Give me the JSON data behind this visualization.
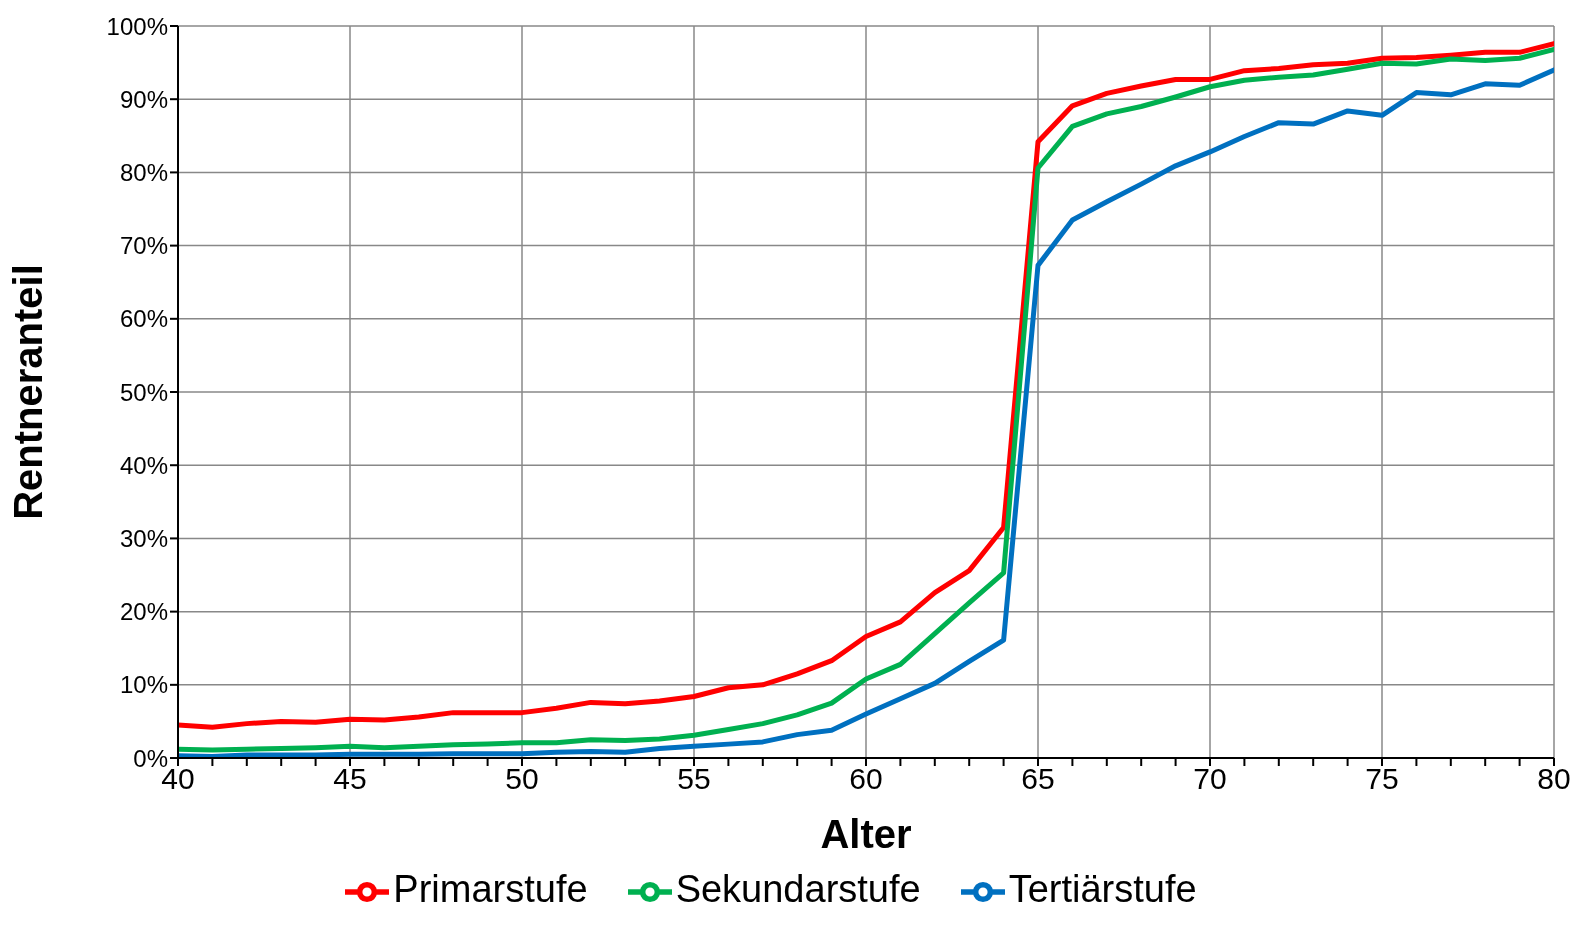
{
  "chart_data": {
    "type": "line",
    "xlabel": "Alter",
    "ylabel": "Rentneranteil",
    "x": [
      40,
      41,
      42,
      43,
      44,
      45,
      46,
      47,
      48,
      49,
      50,
      51,
      52,
      53,
      54,
      55,
      56,
      57,
      58,
      59,
      60,
      61,
      62,
      63,
      64,
      65,
      66,
      67,
      68,
      69,
      70,
      71,
      72,
      73,
      74,
      75,
      76,
      77,
      78,
      79,
      80
    ],
    "series": [
      {
        "name": "Primarstufe",
        "color": "#ff0000",
        "values": [
          4.5,
          4.2,
          4.7,
          5.0,
          4.9,
          5.3,
          5.2,
          5.6,
          6.2,
          6.2,
          6.2,
          6.8,
          7.6,
          7.4,
          7.8,
          8.4,
          9.6,
          10.0,
          11.5,
          13.3,
          16.6,
          18.6,
          22.6,
          25.6,
          31.5,
          84.2,
          89.1,
          90.8,
          91.8,
          92.7,
          92.7,
          93.9,
          94.2,
          94.7,
          94.9,
          95.6,
          95.7,
          96.0,
          96.4,
          96.4,
          97.6
        ]
      },
      {
        "name": "Sekundarstufe",
        "color": "#00b050",
        "values": [
          1.2,
          1.1,
          1.2,
          1.3,
          1.4,
          1.6,
          1.4,
          1.6,
          1.8,
          1.9,
          2.1,
          2.1,
          2.5,
          2.4,
          2.6,
          3.1,
          3.9,
          4.7,
          5.9,
          7.5,
          10.8,
          12.8,
          17.0,
          21.2,
          25.3,
          80.6,
          86.3,
          88.0,
          89.0,
          90.3,
          91.7,
          92.6,
          93.0,
          93.3,
          94.1,
          94.9,
          94.8,
          95.5,
          95.3,
          95.6,
          96.8
        ]
      },
      {
        "name": "Tertiärstufe",
        "color": "#0070c0",
        "values": [
          0.3,
          0.2,
          0.4,
          0.4,
          0.4,
          0.5,
          0.5,
          0.5,
          0.6,
          0.6,
          0.6,
          0.8,
          0.9,
          0.8,
          1.3,
          1.6,
          1.9,
          2.2,
          3.2,
          3.8,
          6.0,
          8.1,
          10.2,
          13.2,
          16.1,
          67.3,
          73.5,
          76.0,
          78.4,
          80.9,
          82.8,
          84.9,
          86.8,
          86.6,
          88.4,
          87.8,
          90.9,
          90.6,
          92.1,
          91.9,
          94.0
        ]
      }
    ],
    "xlim": [
      40,
      80
    ],
    "xticks": [
      40,
      {
        "value": 41,
        "label": null
      },
      {
        "value": 42,
        "label": null
      },
      {
        "value": 43,
        "label": null
      },
      {
        "value": 44,
        "label": null
      },
      45,
      {
        "value": 46,
        "label": null
      },
      {
        "value": 47,
        "label": null
      },
      {
        "value": 48,
        "label": null
      },
      {
        "value": 49,
        "label": null
      },
      50,
      {
        "value": 51,
        "label": null
      },
      {
        "value": 52,
        "label": null
      },
      {
        "value": 53,
        "label": null
      },
      {
        "value": 54,
        "label": null
      },
      55,
      {
        "value": 56,
        "label": null
      },
      {
        "value": 57,
        "label": null
      },
      {
        "value": 58,
        "label": null
      },
      {
        "value": 59,
        "label": null
      },
      60,
      {
        "value": 61,
        "label": null
      },
      {
        "value": 62,
        "label": null
      },
      {
        "value": 63,
        "label": null
      },
      {
        "value": 64,
        "label": null
      },
      65,
      {
        "value": 66,
        "label": null
      },
      {
        "value": 67,
        "label": null
      },
      {
        "value": 68,
        "label": null
      },
      {
        "value": 69,
        "label": null
      },
      70,
      {
        "value": 71,
        "label": null
      },
      {
        "value": 72,
        "label": null
      },
      {
        "value": 73,
        "label": null
      },
      {
        "value": 74,
        "label": null
      },
      75,
      {
        "value": 76,
        "label": null
      },
      {
        "value": 77,
        "label": null
      },
      {
        "value": 78,
        "label": null
      },
      {
        "value": 79,
        "label": null
      },
      80
    ],
    "ylim": [
      0,
      100
    ],
    "yticks": [
      {
        "value": 0,
        "label": "0%"
      },
      {
        "value": 10,
        "label": "10%"
      },
      {
        "value": 20,
        "label": "20%"
      },
      {
        "value": 30,
        "label": "30%"
      },
      {
        "value": 40,
        "label": "40%"
      },
      {
        "value": 50,
        "label": "50%"
      },
      {
        "value": 60,
        "label": "60%"
      },
      {
        "value": 70,
        "label": "70%"
      },
      {
        "value": 80,
        "label": "80%"
      },
      {
        "value": 90,
        "label": "90%"
      },
      {
        "value": 100,
        "label": "100%"
      }
    ],
    "grid": true,
    "legend": "bottom",
    "marker": "none",
    "line_style": "solid"
  }
}
